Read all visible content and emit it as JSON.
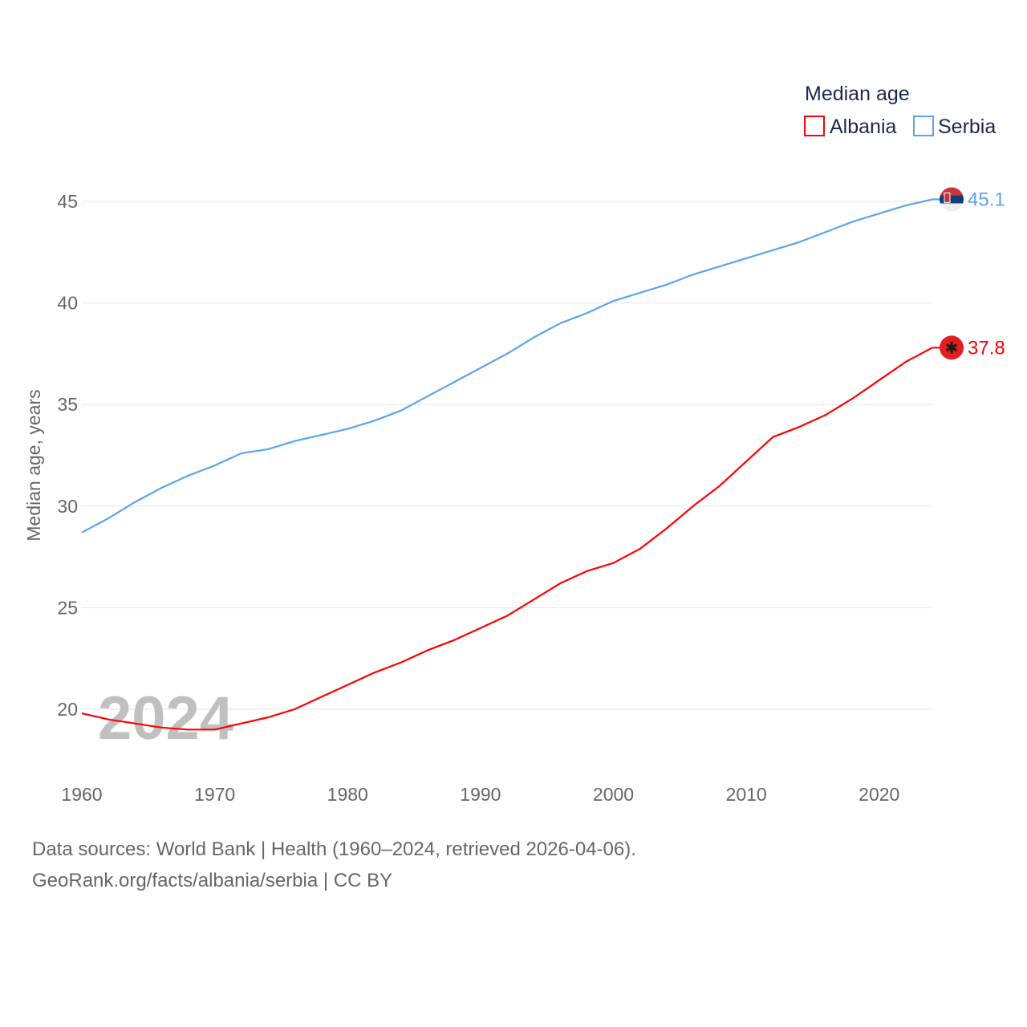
{
  "chart_data": {
    "type": "line",
    "title": "",
    "xlabel": "",
    "ylabel": "Median age, years",
    "xlim": [
      1960,
      2024
    ],
    "ylim": [
      18,
      46
    ],
    "grid": true,
    "x_ticks": [
      "1960",
      "1970",
      "1980",
      "1990",
      "2000",
      "2010",
      "2020"
    ],
    "y_ticks": [
      "20",
      "25",
      "30",
      "35",
      "40",
      "45"
    ],
    "year_watermark": "2024",
    "legend": {
      "title": "Median age",
      "placement": "top-right"
    },
    "x": [
      1960,
      1962,
      1964,
      1966,
      1968,
      1970,
      1972,
      1974,
      1976,
      1978,
      1980,
      1982,
      1984,
      1986,
      1988,
      1990,
      1992,
      1994,
      1996,
      1998,
      2000,
      2002,
      2004,
      2006,
      2008,
      2010,
      2012,
      2014,
      2016,
      2018,
      2020,
      2022,
      2024
    ],
    "series": [
      {
        "name": "Albania",
        "color": "#ff0000",
        "end_label": "37.8",
        "values": [
          19.8,
          19.5,
          19.3,
          19.1,
          19.0,
          19.0,
          19.3,
          19.6,
          20.0,
          20.6,
          21.2,
          21.8,
          22.3,
          22.9,
          23.4,
          24.0,
          24.6,
          25.4,
          26.2,
          26.8,
          27.2,
          27.9,
          28.9,
          30.0,
          31.0,
          32.2,
          33.4,
          33.9,
          34.5,
          35.3,
          36.2,
          37.1,
          37.8
        ]
      },
      {
        "name": "Serbia",
        "color": "#5aa5ec",
        "end_label": "45.1",
        "values": [
          28.7,
          29.4,
          30.2,
          30.9,
          31.5,
          32.0,
          32.6,
          32.8,
          33.2,
          33.5,
          33.8,
          34.2,
          34.7,
          35.4,
          36.1,
          36.8,
          37.5,
          38.3,
          39.0,
          39.5,
          40.1,
          40.5,
          40.9,
          41.4,
          41.8,
          42.2,
          42.6,
          43.0,
          43.5,
          44.0,
          44.4,
          44.8,
          45.1
        ]
      }
    ]
  },
  "footer": {
    "line1": "Data sources: World Bank | Health (1960–2024, retrieved 2026-04-06).",
    "line2": "GeoRank.org/facts/albania/serbia | CC BY"
  }
}
